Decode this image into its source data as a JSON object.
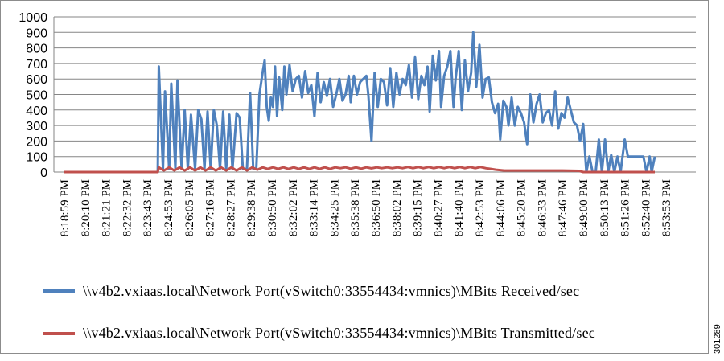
{
  "chart_data": {
    "type": "line",
    "title": "",
    "xlabel": "",
    "ylabel": "",
    "ylim": [
      0,
      1000
    ],
    "yticks": [
      0,
      100,
      200,
      300,
      400,
      500,
      600,
      700,
      800,
      900,
      1000
    ],
    "grid": "horizontal",
    "legend_position": "bottom",
    "x_tick_labels": [
      "8:18:59 PM",
      "8:20:10 PM",
      "8:21:21 PM",
      "8:22:32 PM",
      "8:23:43 PM",
      "8:24:53 PM",
      "8:26:05 PM",
      "8:27:16 PM",
      "8:28:27 PM",
      "8:29:38 PM",
      "8:30:50 PM",
      "8:32:02 PM",
      "8:33:14 PM",
      "8:34:25 PM",
      "8:35:38 PM",
      "8:36:50 PM",
      "8:38:02 PM",
      "8:39:15 PM",
      "8:40:27 PM",
      "8:41:40 PM",
      "8:42:53 PM",
      "8:44:06 PM",
      "8:45:20 PM",
      "8:46:33 PM",
      "8:47:46 PM",
      "8:49:00 PM",
      "8:50:13 PM",
      "8:51:26 PM",
      "8:52:40 PM",
      "8:53:53 PM"
    ],
    "series": [
      {
        "name": "\\\\v4b2.vxiaas.local\\Network Port(vSwitch0:33554434:vmnics)\\MBits Received/sec",
        "color": "#4f81bd",
        "points": [
          [
            0,
            0
          ],
          [
            4.5,
            0
          ],
          [
            4.55,
            680
          ],
          [
            4.75,
            20
          ],
          [
            4.85,
            520
          ],
          [
            5.05,
            20
          ],
          [
            5.15,
            570
          ],
          [
            5.35,
            20
          ],
          [
            5.45,
            590
          ],
          [
            5.65,
            20
          ],
          [
            5.8,
            400
          ],
          [
            5.95,
            20
          ],
          [
            6.1,
            370
          ],
          [
            6.3,
            20
          ],
          [
            6.45,
            400
          ],
          [
            6.6,
            340
          ],
          [
            6.75,
            20
          ],
          [
            6.9,
            390
          ],
          [
            7.05,
            20
          ],
          [
            7.2,
            400
          ],
          [
            7.35,
            300
          ],
          [
            7.5,
            20
          ],
          [
            7.65,
            390
          ],
          [
            7.8,
            20
          ],
          [
            7.95,
            370
          ],
          [
            8.1,
            20
          ],
          [
            8.3,
            380
          ],
          [
            8.45,
            350
          ],
          [
            8.6,
            20
          ],
          [
            8.8,
            20
          ],
          [
            8.95,
            510
          ],
          [
            9.1,
            20
          ],
          [
            9.25,
            20
          ],
          [
            9.4,
            500
          ],
          [
            9.55,
            640
          ],
          [
            9.65,
            720
          ],
          [
            9.75,
            420
          ],
          [
            9.85,
            330
          ],
          [
            9.95,
            480
          ],
          [
            10.05,
            420
          ],
          [
            10.15,
            680
          ],
          [
            10.25,
            360
          ],
          [
            10.35,
            610
          ],
          [
            10.5,
            400
          ],
          [
            10.6,
            680
          ],
          [
            10.7,
            500
          ],
          [
            10.85,
            690
          ],
          [
            11,
            520
          ],
          [
            11.15,
            600
          ],
          [
            11.3,
            620
          ],
          [
            11.45,
            480
          ],
          [
            11.6,
            650
          ],
          [
            11.75,
            510
          ],
          [
            11.9,
            560
          ],
          [
            12.05,
            360
          ],
          [
            12.2,
            640
          ],
          [
            12.35,
            450
          ],
          [
            12.5,
            580
          ],
          [
            12.65,
            490
          ],
          [
            12.8,
            600
          ],
          [
            12.95,
            420
          ],
          [
            13.1,
            500
          ],
          [
            13.25,
            600
          ],
          [
            13.4,
            460
          ],
          [
            13.55,
            500
          ],
          [
            13.7,
            620
          ],
          [
            13.8,
            450
          ],
          [
            13.95,
            620
          ],
          [
            14.1,
            500
          ],
          [
            14.25,
            580
          ],
          [
            14.4,
            600
          ],
          [
            14.55,
            620
          ],
          [
            14.65,
            490
          ],
          [
            14.8,
            200
          ],
          [
            14.95,
            640
          ],
          [
            15.1,
            420
          ],
          [
            15.25,
            600
          ],
          [
            15.4,
            580
          ],
          [
            15.55,
            430
          ],
          [
            15.7,
            670
          ],
          [
            15.85,
            420
          ],
          [
            16,
            640
          ],
          [
            16.15,
            500
          ],
          [
            16.3,
            600
          ],
          [
            16.45,
            560
          ],
          [
            16.6,
            690
          ],
          [
            16.75,
            480
          ],
          [
            16.9,
            740
          ],
          [
            17.05,
            470
          ],
          [
            17.2,
            620
          ],
          [
            17.35,
            560
          ],
          [
            17.5,
            680
          ],
          [
            17.6,
            390
          ],
          [
            17.75,
            750
          ],
          [
            17.9,
            590
          ],
          [
            18.05,
            780
          ],
          [
            18.15,
            420
          ],
          [
            18.3,
            620
          ],
          [
            18.45,
            680
          ],
          [
            18.6,
            780
          ],
          [
            18.75,
            420
          ],
          [
            18.85,
            600
          ],
          [
            19,
            780
          ],
          [
            19.15,
            400
          ],
          [
            19.3,
            720
          ],
          [
            19.45,
            520
          ],
          [
            19.6,
            640
          ],
          [
            19.7,
            900
          ],
          [
            19.85,
            550
          ],
          [
            20,
            820
          ],
          [
            20.15,
            480
          ],
          [
            20.3,
            600
          ],
          [
            20.45,
            610
          ],
          [
            20.6,
            450
          ],
          [
            20.75,
            380
          ],
          [
            20.9,
            440
          ],
          [
            21,
            210
          ],
          [
            21.15,
            460
          ],
          [
            21.3,
            420
          ],
          [
            21.4,
            300
          ],
          [
            21.55,
            480
          ],
          [
            21.7,
            300
          ],
          [
            21.85,
            420
          ],
          [
            22,
            380
          ],
          [
            22.15,
            320
          ],
          [
            22.3,
            180
          ],
          [
            22.45,
            500
          ],
          [
            22.6,
            320
          ],
          [
            22.75,
            440
          ],
          [
            22.9,
            500
          ],
          [
            23.05,
            320
          ],
          [
            23.2,
            380
          ],
          [
            23.35,
            400
          ],
          [
            23.5,
            300
          ],
          [
            23.65,
            520
          ],
          [
            23.8,
            280
          ],
          [
            23.95,
            380
          ],
          [
            24.1,
            350
          ],
          [
            24.25,
            480
          ],
          [
            24.4,
            400
          ],
          [
            24.55,
            320
          ],
          [
            24.7,
            300
          ],
          [
            24.85,
            200
          ],
          [
            25,
            310
          ],
          [
            25.15,
            0
          ],
          [
            25.3,
            100
          ],
          [
            25.45,
            0
          ],
          [
            25.6,
            0
          ],
          [
            25.75,
            210
          ],
          [
            25.9,
            0
          ],
          [
            26.05,
            210
          ],
          [
            26.2,
            0
          ],
          [
            26.35,
            110
          ],
          [
            26.5,
            0
          ],
          [
            26.65,
            100
          ],
          [
            26.8,
            0
          ],
          [
            27,
            210
          ],
          [
            27.15,
            100
          ],
          [
            27.3,
            100
          ],
          [
            27.45,
            100
          ],
          [
            27.6,
            100
          ],
          [
            27.75,
            100
          ],
          [
            27.9,
            100
          ],
          [
            28.05,
            0
          ],
          [
            28.2,
            100
          ],
          [
            28.3,
            0
          ],
          [
            28.45,
            100
          ]
        ]
      },
      {
        "name": "\\\\v4b2.vxiaas.local\\Network Port(vSwitch0:33554434:vmnics)\\MBits Transmitted/sec",
        "color": "#c0504d",
        "points": [
          [
            0,
            0
          ],
          [
            4.5,
            0
          ],
          [
            4.55,
            30
          ],
          [
            4.8,
            10
          ],
          [
            5.05,
            30
          ],
          [
            5.3,
            10
          ],
          [
            5.55,
            30
          ],
          [
            5.8,
            10
          ],
          [
            6.05,
            30
          ],
          [
            6.3,
            10
          ],
          [
            6.55,
            30
          ],
          [
            6.8,
            10
          ],
          [
            7.05,
            30
          ],
          [
            7.3,
            10
          ],
          [
            7.55,
            30
          ],
          [
            7.8,
            10
          ],
          [
            8.05,
            30
          ],
          [
            8.3,
            10
          ],
          [
            8.55,
            30
          ],
          [
            8.8,
            10
          ],
          [
            9.05,
            30
          ],
          [
            9.3,
            15
          ],
          [
            9.55,
            30
          ],
          [
            9.8,
            20
          ],
          [
            10.05,
            30
          ],
          [
            10.3,
            20
          ],
          [
            10.55,
            30
          ],
          [
            10.8,
            20
          ],
          [
            11.05,
            30
          ],
          [
            11.3,
            20
          ],
          [
            11.55,
            30
          ],
          [
            11.8,
            20
          ],
          [
            12.05,
            30
          ],
          [
            12.3,
            20
          ],
          [
            12.55,
            30
          ],
          [
            12.8,
            20
          ],
          [
            13.05,
            30
          ],
          [
            13.3,
            25
          ],
          [
            13.55,
            30
          ],
          [
            13.8,
            22
          ],
          [
            14.05,
            30
          ],
          [
            14.3,
            22
          ],
          [
            14.55,
            30
          ],
          [
            14.8,
            24
          ],
          [
            15.05,
            30
          ],
          [
            15.3,
            25
          ],
          [
            15.55,
            30
          ],
          [
            15.8,
            25
          ],
          [
            16.05,
            30
          ],
          [
            16.3,
            25
          ],
          [
            16.55,
            32
          ],
          [
            16.8,
            25
          ],
          [
            17.05,
            32
          ],
          [
            17.3,
            25
          ],
          [
            17.55,
            32
          ],
          [
            17.8,
            25
          ],
          [
            18.05,
            32
          ],
          [
            18.3,
            25
          ],
          [
            18.55,
            32
          ],
          [
            18.8,
            25
          ],
          [
            19.05,
            32
          ],
          [
            19.3,
            25
          ],
          [
            19.55,
            32
          ],
          [
            19.8,
            25
          ],
          [
            20.05,
            32
          ],
          [
            20.3,
            25
          ],
          [
            20.55,
            20
          ],
          [
            20.8,
            15
          ],
          [
            21.2,
            10
          ],
          [
            22,
            10
          ],
          [
            23,
            10
          ],
          [
            24,
            10
          ],
          [
            24.8,
            8
          ],
          [
            25,
            0
          ],
          [
            28.45,
            0
          ]
        ]
      }
    ]
  },
  "legend": {
    "items": [
      {
        "label": "\\\\v4b2.vxiaas.local\\Network Port(vSwitch0:33554434:vmnics)\\MBits Received/sec",
        "color": "#4f81bd"
      },
      {
        "label": "\\\\v4b2.vxiaas.local\\Network Port(vSwitch0:33554434:vmnics)\\MBits Transmitted/sec",
        "color": "#c0504d"
      }
    ]
  },
  "figure_id": "301289"
}
